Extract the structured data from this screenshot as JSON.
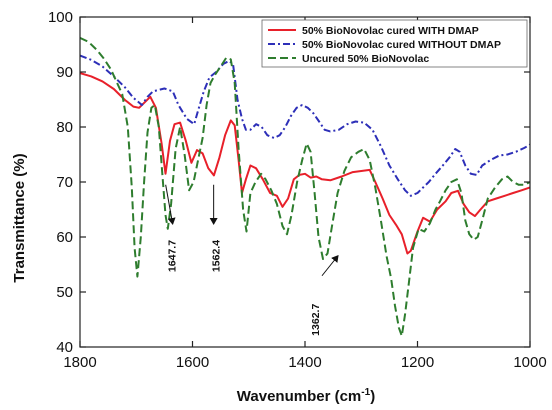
{
  "chart_data": {
    "type": "line",
    "title": "",
    "xlabel": "Wavenumber (cm",
    "xlabel_sup": "-1",
    "xlabel_end": ")",
    "ylabel": "Transmittance (%)",
    "xlim": [
      1800,
      1000
    ],
    "ylim": [
      40,
      100
    ],
    "x_ticks": [
      "1800",
      "1600",
      "1400",
      "1200",
      "1000"
    ],
    "y_ticks": [
      "40",
      "50",
      "60",
      "70",
      "80",
      "90",
      "100"
    ],
    "legend_position": "top-right",
    "series": [
      {
        "name": "50% BioNovolac cured WITH DMAP",
        "color": "#e8202a",
        "dash": "solid",
        "points": [
          [
            1800,
            89.8
          ],
          [
            1780,
            89.2
          ],
          [
            1760,
            88.3
          ],
          [
            1740,
            86.9
          ],
          [
            1720,
            84.9
          ],
          [
            1705,
            83.7
          ],
          [
            1695,
            83.5
          ],
          [
            1685,
            84.5
          ],
          [
            1675,
            85.5
          ],
          [
            1665,
            83.5
          ],
          [
            1655,
            77
          ],
          [
            1648,
            71.5
          ],
          [
            1640,
            77.5
          ],
          [
            1632,
            80.5
          ],
          [
            1622,
            80.8
          ],
          [
            1612,
            77.5
          ],
          [
            1602,
            73.5
          ],
          [
            1592,
            75.8
          ],
          [
            1582,
            75.2
          ],
          [
            1572,
            72.5
          ],
          [
            1562,
            71.2
          ],
          [
            1552,
            74.5
          ],
          [
            1542,
            78.5
          ],
          [
            1532,
            81.2
          ],
          [
            1525,
            80.3
          ],
          [
            1518,
            74
          ],
          [
            1512,
            68
          ],
          [
            1505,
            70.5
          ],
          [
            1497,
            73
          ],
          [
            1487,
            72.5
          ],
          [
            1475,
            70.5
          ],
          [
            1462,
            68
          ],
          [
            1450,
            67.5
          ],
          [
            1440,
            65.5
          ],
          [
            1430,
            67
          ],
          [
            1420,
            70.5
          ],
          [
            1410,
            71.3
          ],
          [
            1400,
            71.5
          ],
          [
            1390,
            70.8
          ],
          [
            1380,
            71
          ],
          [
            1370,
            70.5
          ],
          [
            1355,
            70.3
          ],
          [
            1335,
            71
          ],
          [
            1315,
            71.8
          ],
          [
            1300,
            72
          ],
          [
            1285,
            72.2
          ],
          [
            1275,
            70
          ],
          [
            1262,
            67
          ],
          [
            1250,
            64
          ],
          [
            1238,
            62.2
          ],
          [
            1228,
            60.5
          ],
          [
            1218,
            57
          ],
          [
            1212,
            57.5
          ],
          [
            1200,
            61
          ],
          [
            1190,
            63.5
          ],
          [
            1178,
            62.8
          ],
          [
            1165,
            65
          ],
          [
            1150,
            66.5
          ],
          [
            1140,
            68
          ],
          [
            1128,
            68.4
          ],
          [
            1118,
            66
          ],
          [
            1108,
            64.5
          ],
          [
            1098,
            63.8
          ],
          [
            1088,
            65
          ],
          [
            1075,
            66.5
          ],
          [
            1060,
            67
          ],
          [
            1045,
            67.5
          ],
          [
            1030,
            68
          ],
          [
            1015,
            68.5
          ],
          [
            1000,
            69
          ]
        ]
      },
      {
        "name": "50% BioNovolac cured WITHOUT DMAP",
        "color": "#2d2fb8",
        "dash": "dashdot",
        "points": [
          [
            1800,
            93
          ],
          [
            1780,
            92.2
          ],
          [
            1760,
            91
          ],
          [
            1740,
            89.2
          ],
          [
            1720,
            87.2
          ],
          [
            1705,
            85.3
          ],
          [
            1690,
            84
          ],
          [
            1680,
            85.5
          ],
          [
            1670,
            86.5
          ],
          [
            1650,
            87
          ],
          [
            1635,
            86.5
          ],
          [
            1625,
            84
          ],
          [
            1610,
            81.5
          ],
          [
            1597,
            80.5
          ],
          [
            1590,
            83
          ],
          [
            1580,
            86.5
          ],
          [
            1570,
            89
          ],
          [
            1558,
            90
          ],
          [
            1545,
            91.5
          ],
          [
            1535,
            92
          ],
          [
            1528,
            91.5
          ],
          [
            1520,
            85
          ],
          [
            1512,
            81.5
          ],
          [
            1505,
            79.5
          ],
          [
            1497,
            79.5
          ],
          [
            1487,
            80.5
          ],
          [
            1477,
            80
          ],
          [
            1467,
            78.5
          ],
          [
            1455,
            78
          ],
          [
            1445,
            78.5
          ],
          [
            1435,
            80
          ],
          [
            1425,
            82
          ],
          [
            1415,
            83.5
          ],
          [
            1405,
            84
          ],
          [
            1395,
            83.5
          ],
          [
            1385,
            82.5
          ],
          [
            1375,
            81
          ],
          [
            1365,
            79.5
          ],
          [
            1355,
            79.2
          ],
          [
            1340,
            79.5
          ],
          [
            1325,
            80.5
          ],
          [
            1310,
            81
          ],
          [
            1295,
            80.8
          ],
          [
            1280,
            79.5
          ],
          [
            1265,
            76.5
          ],
          [
            1250,
            73
          ],
          [
            1235,
            70.5
          ],
          [
            1222,
            68.5
          ],
          [
            1212,
            67.5
          ],
          [
            1200,
            68
          ],
          [
            1190,
            69
          ],
          [
            1180,
            70
          ],
          [
            1168,
            71.5
          ],
          [
            1155,
            73
          ],
          [
            1143,
            74.5
          ],
          [
            1133,
            76
          ],
          [
            1125,
            75.5
          ],
          [
            1115,
            73
          ],
          [
            1105,
            71.5
          ],
          [
            1095,
            71.3
          ],
          [
            1085,
            73
          ],
          [
            1070,
            74
          ],
          [
            1055,
            74.8
          ],
          [
            1040,
            75
          ],
          [
            1025,
            75.5
          ],
          [
            1010,
            76.2
          ],
          [
            1000,
            76.8
          ]
        ]
      },
      {
        "name": "Uncured 50% BioNovolac",
        "color": "#2e7d2e",
        "dash": "dashed",
        "points": [
          [
            1800,
            96.2
          ],
          [
            1785,
            95.5
          ],
          [
            1770,
            94
          ],
          [
            1758,
            92.5
          ],
          [
            1745,
            90.5
          ],
          [
            1735,
            88.2
          ],
          [
            1725,
            86
          ],
          [
            1715,
            80
          ],
          [
            1708,
            69
          ],
          [
            1703,
            58
          ],
          [
            1698,
            52.8
          ],
          [
            1692,
            60
          ],
          [
            1686,
            70
          ],
          [
            1680,
            79
          ],
          [
            1673,
            83.5
          ],
          [
            1667,
            84
          ],
          [
            1660,
            80
          ],
          [
            1654,
            72
          ],
          [
            1648,
            64
          ],
          [
            1644,
            61.5
          ],
          [
            1638,
            66
          ],
          [
            1630,
            76
          ],
          [
            1622,
            80
          ],
          [
            1614,
            75
          ],
          [
            1606,
            68.5
          ],
          [
            1598,
            70
          ],
          [
            1590,
            74
          ],
          [
            1582,
            78
          ],
          [
            1575,
            84
          ],
          [
            1568,
            88
          ],
          [
            1560,
            89.5
          ],
          [
            1550,
            91
          ],
          [
            1540,
            92.6
          ],
          [
            1532,
            92.3
          ],
          [
            1525,
            88
          ],
          [
            1518,
            76
          ],
          [
            1510,
            65
          ],
          [
            1504,
            61
          ],
          [
            1497,
            68
          ],
          [
            1488,
            70
          ],
          [
            1478,
            71.5
          ],
          [
            1470,
            70.5
          ],
          [
            1460,
            68.5
          ],
          [
            1450,
            66
          ],
          [
            1440,
            62
          ],
          [
            1432,
            60.5
          ],
          [
            1424,
            64
          ],
          [
            1414,
            70
          ],
          [
            1405,
            74
          ],
          [
            1397,
            77
          ],
          [
            1390,
            75.5
          ],
          [
            1383,
            68
          ],
          [
            1376,
            60
          ],
          [
            1368,
            56
          ],
          [
            1360,
            57
          ],
          [
            1352,
            62
          ],
          [
            1342,
            68
          ],
          [
            1330,
            72
          ],
          [
            1318,
            74.5
          ],
          [
            1305,
            75.5
          ],
          [
            1295,
            76
          ],
          [
            1285,
            74
          ],
          [
            1275,
            69
          ],
          [
            1265,
            63
          ],
          [
            1255,
            56.5
          ],
          [
            1247,
            52.5
          ],
          [
            1240,
            47.5
          ],
          [
            1233,
            43.5
          ],
          [
            1228,
            42
          ],
          [
            1222,
            46
          ],
          [
            1215,
            52
          ],
          [
            1208,
            58
          ],
          [
            1198,
            61.5
          ],
          [
            1188,
            61
          ],
          [
            1178,
            62.5
          ],
          [
            1168,
            65
          ],
          [
            1160,
            66.5
          ],
          [
            1150,
            68.5
          ],
          [
            1140,
            70
          ],
          [
            1130,
            70.5
          ],
          [
            1122,
            68
          ],
          [
            1115,
            63
          ],
          [
            1108,
            60.5
          ],
          [
            1100,
            59.5
          ],
          [
            1093,
            60
          ],
          [
            1085,
            63
          ],
          [
            1075,
            67
          ],
          [
            1062,
            69
          ],
          [
            1050,
            70.5
          ],
          [
            1040,
            71
          ],
          [
            1030,
            70
          ],
          [
            1020,
            69.5
          ],
          [
            1010,
            69.5
          ],
          [
            1000,
            70
          ]
        ]
      }
    ],
    "annotations": [
      {
        "label": "1647.7",
        "x": 1647.7,
        "y": 69.5,
        "y_end": 62
      },
      {
        "label": "1562.4",
        "x": 1562.4,
        "y": 69.5,
        "y_end": 62
      },
      {
        "label": "1362.7",
        "x": 1362.7,
        "y": 55.5,
        "y_end": 52
      }
    ]
  }
}
